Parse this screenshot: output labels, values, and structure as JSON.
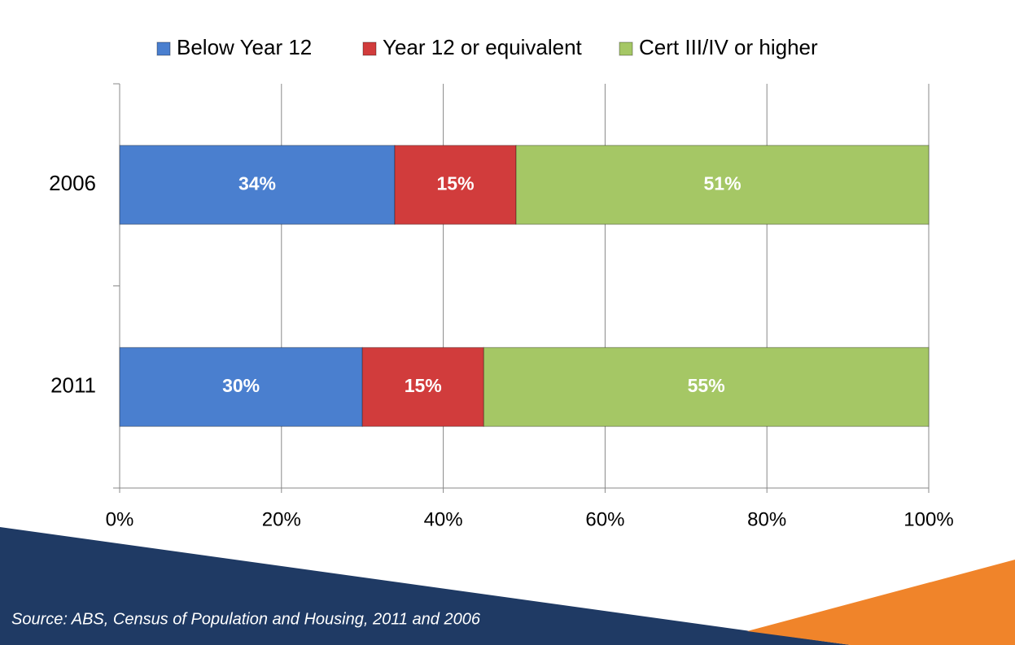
{
  "chart_data": {
    "type": "stacked-bar-horizontal",
    "categories": [
      "2006",
      "2011"
    ],
    "series": [
      {
        "name": "Below Year 12",
        "color": "#4a7fcf",
        "values": [
          34,
          30
        ],
        "value_labels": [
          "34%",
          "30%"
        ]
      },
      {
        "name": "Year 12 or equivalent",
        "color": "#d13c3c",
        "values": [
          15,
          15
        ],
        "value_labels": [
          "15%",
          "15%"
        ]
      },
      {
        "name": "Cert III/IV or higher",
        "color": "#a5c765",
        "values": [
          51,
          55
        ],
        "value_labels": [
          "51%",
          "55%"
        ]
      }
    ],
    "xlim": [
      0,
      100
    ],
    "xticks": [
      {
        "value": 0,
        "label": "0%"
      },
      {
        "value": 20,
        "label": "20%"
      },
      {
        "value": 40,
        "label": "40%"
      },
      {
        "value": 60,
        "label": "60%"
      },
      {
        "value": 80,
        "label": "80%"
      },
      {
        "value": 100,
        "label": "100%"
      }
    ],
    "grid": true,
    "legend": "top",
    "source": "Source: ABS, Census of Population and Housing, 2011 and 2006"
  }
}
